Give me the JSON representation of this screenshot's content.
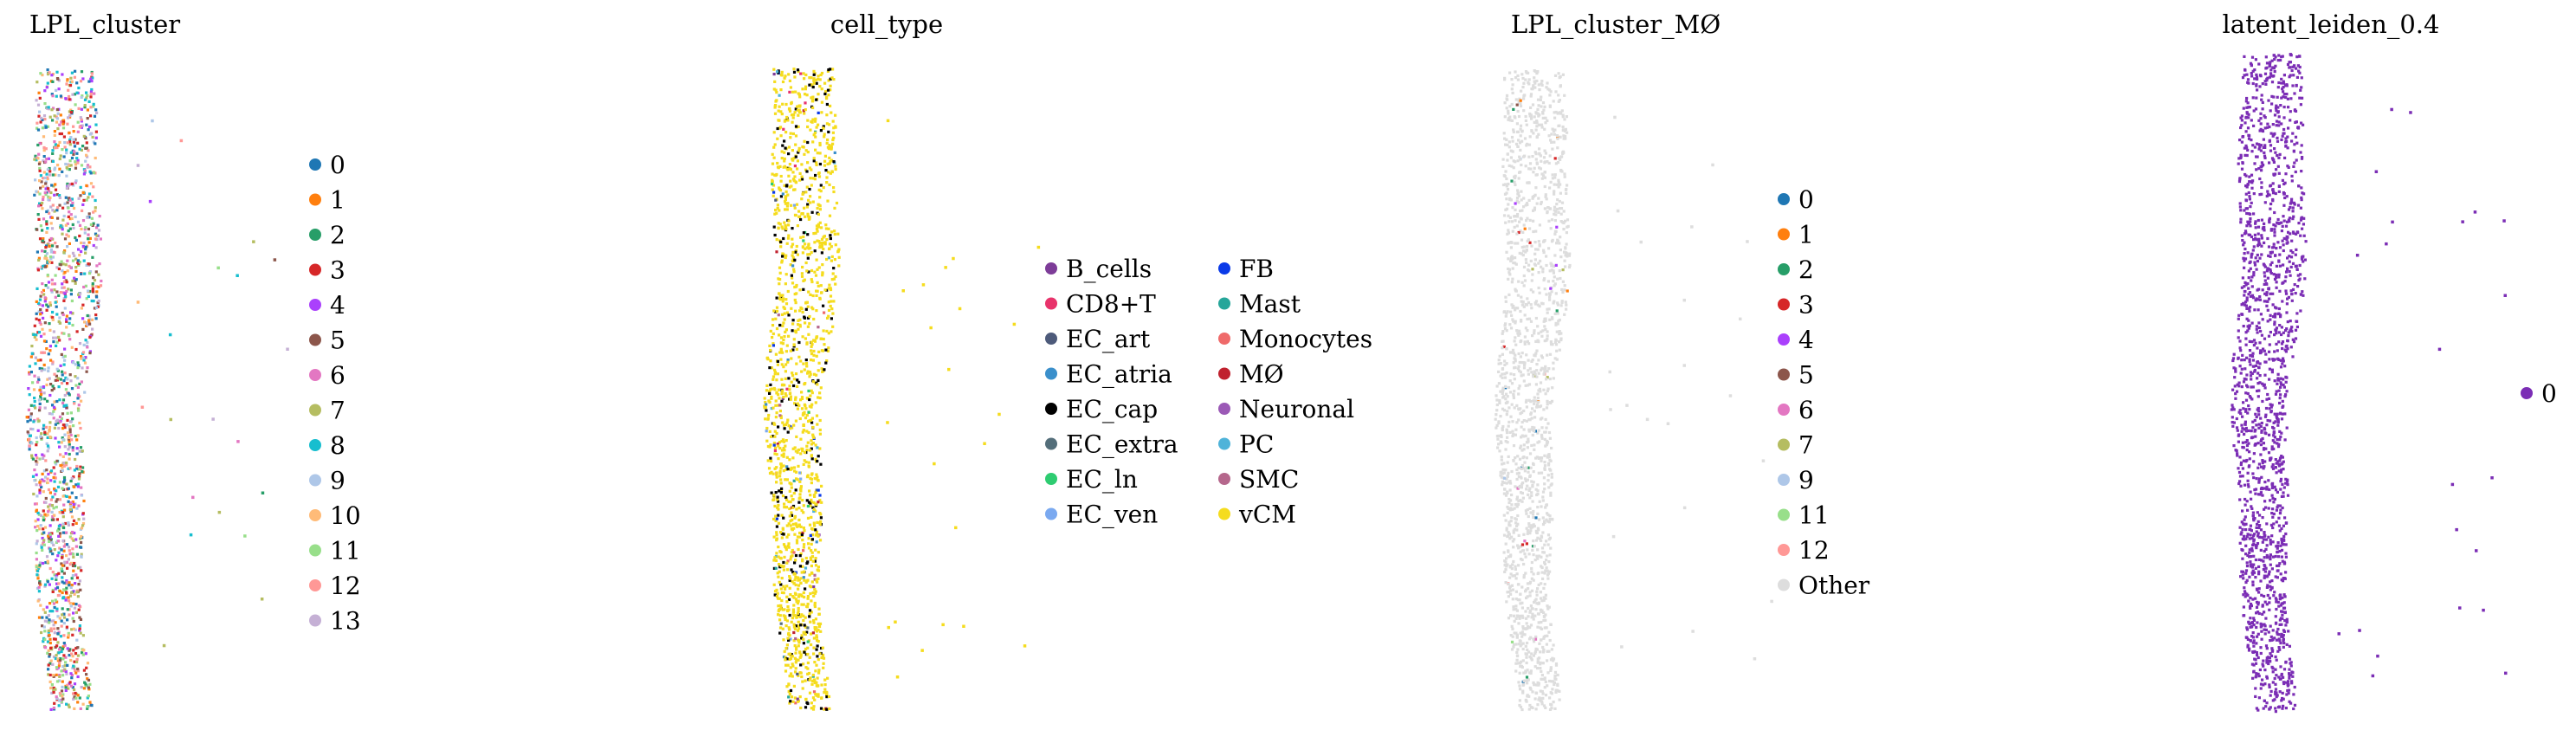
{
  "chart_data": [
    {
      "type": "scatter",
      "title": "LPL_cluster",
      "xlabel": "",
      "ylabel": "",
      "grid": false,
      "axes_visible": false,
      "legend_placement": "right",
      "color_mode": "mixed",
      "legend": [
        {
          "label": "0",
          "color": "#1f77b4"
        },
        {
          "label": "1",
          "color": "#ff7f0e"
        },
        {
          "label": "2",
          "color": "#279e68"
        },
        {
          "label": "3",
          "color": "#d62728"
        },
        {
          "label": "4",
          "color": "#aa40fc"
        },
        {
          "label": "5",
          "color": "#8c564b"
        },
        {
          "label": "6",
          "color": "#e377c2"
        },
        {
          "label": "7",
          "color": "#b5bd61"
        },
        {
          "label": "8",
          "color": "#17becf"
        },
        {
          "label": "9",
          "color": "#aec7e8"
        },
        {
          "label": "10",
          "color": "#ffbb78"
        },
        {
          "label": "11",
          "color": "#98df8a"
        },
        {
          "label": "12",
          "color": "#ff9896"
        },
        {
          "label": "13",
          "color": "#c5b0d5"
        }
      ],
      "legend_columns": 1
    },
    {
      "type": "scatter",
      "title": "cell_type",
      "xlabel": "",
      "ylabel": "",
      "grid": false,
      "axes_visible": false,
      "legend_placement": "right",
      "color_mode": "dominant-vCM",
      "legend": [
        {
          "label": "B_cells",
          "color": "#7d3c98"
        },
        {
          "label": "CD8+T",
          "color": "#e8336b"
        },
        {
          "label": "EC_art",
          "color": "#4d5a7a"
        },
        {
          "label": "EC_atria",
          "color": "#3a8fcb"
        },
        {
          "label": "EC_cap",
          "color": "#000000"
        },
        {
          "label": "EC_extra",
          "color": "#546e7a"
        },
        {
          "label": "EC_ln",
          "color": "#2ecc71"
        },
        {
          "label": "EC_ven",
          "color": "#7aa9f0"
        },
        {
          "label": "FB",
          "color": "#0a3ae8"
        },
        {
          "label": "Mast",
          "color": "#26a69a"
        },
        {
          "label": "Monocytes",
          "color": "#ef6a6a"
        },
        {
          "label": "MØ",
          "color": "#c0212e"
        },
        {
          "label": "Neuronal",
          "color": "#9b59b6"
        },
        {
          "label": "PC",
          "color": "#4fb3d9"
        },
        {
          "label": "SMC",
          "color": "#b5678c"
        },
        {
          "label": "vCM",
          "color": "#f5dc1e"
        }
      ],
      "legend_columns": 2
    },
    {
      "type": "scatter",
      "title": "LPL_cluster_MØ",
      "xlabel": "",
      "ylabel": "",
      "grid": false,
      "axes_visible": false,
      "legend_placement": "right",
      "color_mode": "mostly-other",
      "legend": [
        {
          "label": "0",
          "color": "#1f77b4"
        },
        {
          "label": "1",
          "color": "#ff7f0e"
        },
        {
          "label": "2",
          "color": "#279e68"
        },
        {
          "label": "3",
          "color": "#d62728"
        },
        {
          "label": "4",
          "color": "#aa40fc"
        },
        {
          "label": "5",
          "color": "#8c564b"
        },
        {
          "label": "6",
          "color": "#e377c2"
        },
        {
          "label": "7",
          "color": "#b5bd61"
        },
        {
          "label": "9",
          "color": "#aec7e8"
        },
        {
          "label": "11",
          "color": "#98df8a"
        },
        {
          "label": "12",
          "color": "#ff9896"
        },
        {
          "label": "Other",
          "color": "#dddddd"
        }
      ],
      "legend_columns": 1
    },
    {
      "type": "scatter",
      "title": "latent_leiden_0.4",
      "xlabel": "",
      "ylabel": "",
      "grid": false,
      "axes_visible": false,
      "legend_placement": "right",
      "color_mode": "single",
      "legend": [
        {
          "label": "0",
          "color": "#7b2db5"
        }
      ],
      "legend_columns": 1
    }
  ]
}
